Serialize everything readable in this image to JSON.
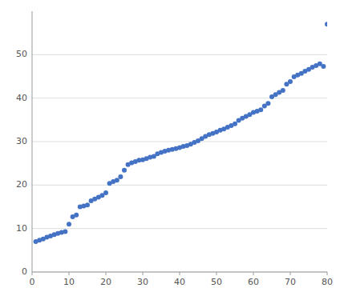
{
  "chart_data": {
    "type": "scatter",
    "x": [
      1,
      2,
      3,
      4,
      5,
      6,
      7,
      8,
      9,
      10,
      11,
      12,
      13,
      14,
      15,
      16,
      17,
      18,
      19,
      20,
      21,
      22,
      23,
      24,
      25,
      26,
      27,
      28,
      29,
      30,
      31,
      32,
      33,
      34,
      35,
      36,
      37,
      38,
      39,
      40,
      41,
      42,
      43,
      44,
      45,
      46,
      47,
      48,
      49,
      50,
      51,
      52,
      53,
      54,
      55,
      56,
      57,
      58,
      59,
      60,
      61,
      62,
      63,
      64,
      65,
      66,
      67,
      68,
      69,
      70,
      71,
      72,
      73,
      74,
      75,
      76,
      77,
      78,
      79,
      80
    ],
    "values": [
      7.0,
      7.3,
      7.6,
      8.0,
      8.3,
      8.6,
      8.9,
      9.1,
      9.3,
      11.0,
      12.7,
      13.1,
      15.0,
      15.2,
      15.4,
      16.4,
      16.8,
      17.2,
      17.6,
      18.2,
      20.4,
      20.8,
      21.1,
      21.9,
      23.4,
      24.7,
      25.1,
      25.4,
      25.7,
      25.8,
      26.1,
      26.4,
      26.6,
      27.2,
      27.5,
      27.8,
      28.0,
      28.2,
      28.4,
      28.6,
      28.9,
      29.1,
      29.4,
      29.8,
      30.2,
      30.7,
      31.2,
      31.6,
      31.9,
      32.2,
      32.6,
      32.9,
      33.3,
      33.7,
      34.1,
      34.9,
      35.4,
      35.8,
      36.2,
      36.7,
      37.0,
      37.3,
      38.2,
      38.8,
      40.3,
      40.8,
      41.3,
      41.8,
      43.2,
      43.8,
      44.9,
      45.3,
      45.7,
      46.2,
      46.6,
      47.1,
      47.5,
      47.9,
      47.3,
      57.0
    ],
    "color": "#4472C4",
    "xlim": [
      0,
      80
    ],
    "ylim": [
      0,
      60
    ],
    "xticks": [
      0,
      10,
      20,
      30,
      40,
      50,
      60,
      70,
      80
    ],
    "yticks": [
      0,
      10,
      20,
      30,
      40,
      50
    ],
    "grid": "y"
  }
}
